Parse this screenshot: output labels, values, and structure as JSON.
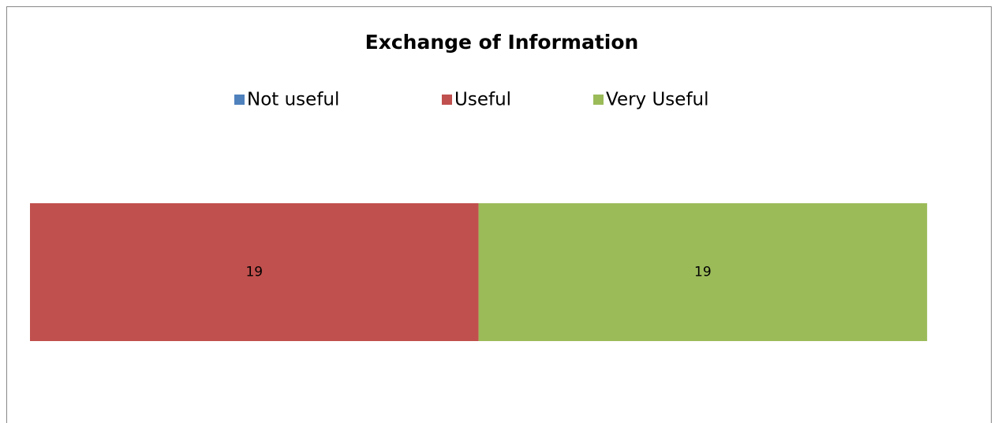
{
  "chart_data": {
    "type": "stacked_bar",
    "orientation": "horizontal",
    "title": "Exchange of Information",
    "series": [
      {
        "name": "Not useful",
        "color": "#4f81bd",
        "values": [
          0
        ]
      },
      {
        "name": "Useful",
        "color": "#c0504d",
        "values": [
          19
        ]
      },
      {
        "name": "Very Useful",
        "color": "#9bbb59",
        "values": [
          19
        ]
      }
    ],
    "xlim": [
      0,
      40
    ],
    "legend": "top"
  }
}
